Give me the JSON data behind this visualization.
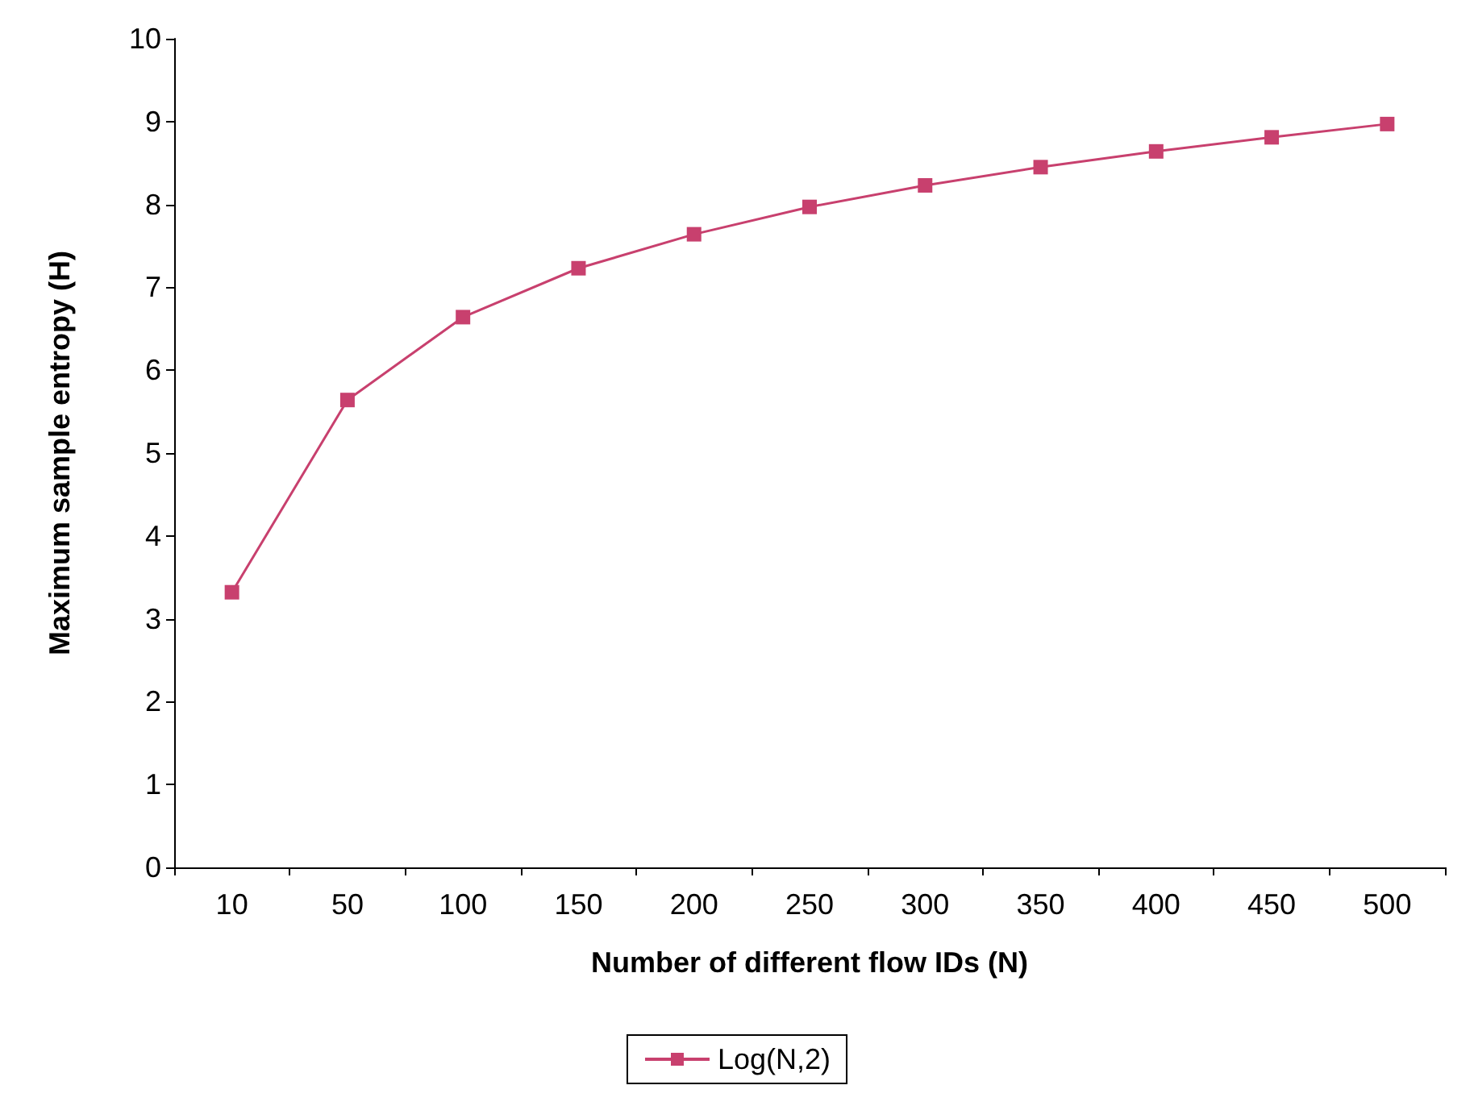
{
  "chart_data": {
    "type": "line",
    "xlabel": "Number of different flow IDs (N)",
    "ylabel": "Maximum sample entropy (H)",
    "categories": [
      "10",
      "50",
      "100",
      "150",
      "200",
      "250",
      "300",
      "350",
      "400",
      "450",
      "500"
    ],
    "series": [
      {
        "name": "Log(N,2)",
        "color": "#c8406e",
        "values": [
          3.32,
          5.64,
          6.64,
          7.23,
          7.64,
          7.97,
          8.23,
          8.45,
          8.64,
          8.81,
          8.97
        ]
      }
    ],
    "ylim": [
      0,
      10
    ],
    "yticks": [
      0,
      1,
      2,
      3,
      4,
      5,
      6,
      7,
      8,
      9,
      10
    ],
    "grid": false,
    "legend": "bottom",
    "marker": "square",
    "line_style": "solid"
  }
}
